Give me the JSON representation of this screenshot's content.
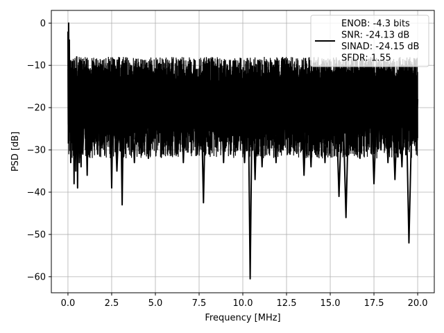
{
  "chart_data": {
    "type": "line",
    "title": "",
    "xlabel": "Frequency [MHz]",
    "ylabel": "PSD [dB]",
    "xlim": [
      -0.95,
      20.95
    ],
    "ylim": [
      -63.8,
      3.0
    ],
    "xticks": [
      0.0,
      2.5,
      5.0,
      7.5,
      10.0,
      12.5,
      15.0,
      17.5,
      20.0
    ],
    "xtick_labels": [
      "0.0",
      "2.5",
      "5.0",
      "7.5",
      "10.0",
      "12.5",
      "15.0",
      "17.5",
      "20.0"
    ],
    "yticks": [
      0,
      -10,
      -20,
      -30,
      -40,
      -50,
      -60
    ],
    "ytick_labels": [
      "0",
      "−10",
      "−20",
      "−30",
      "−40",
      "−50",
      "−60"
    ],
    "grid": true,
    "legend": {
      "placement": "top-right",
      "entries": [
        "ENOB: -4.3 bits",
        "SNR: -24.13 dB",
        "SINAD: -24.15 dB",
        "SFDR: 1.55"
      ]
    },
    "series": [
      {
        "color": "#000000",
        "x": [
          0.0,
          0.02,
          0.04,
          0.06,
          0.08,
          0.1,
          0.13,
          0.16,
          0.2,
          0.25,
          0.3,
          0.35,
          0.4,
          0.45,
          0.5,
          0.55,
          0.6,
          0.65,
          0.7,
          0.75,
          0.8,
          0.85,
          0.9,
          1.0,
          1.1,
          1.2,
          1.3,
          1.4,
          1.5,
          1.6,
          1.7,
          1.8,
          1.9,
          2.0,
          2.2,
          2.4,
          2.5,
          2.6,
          2.8,
          3.0,
          3.1,
          3.2,
          3.4,
          3.6,
          3.8,
          4.0,
          4.2,
          4.4,
          4.6,
          4.8,
          5.0,
          5.2,
          5.4,
          5.6,
          5.8,
          6.0,
          6.2,
          6.4,
          6.6,
          6.8,
          7.0,
          7.2,
          7.4,
          7.6,
          7.75,
          7.9,
          8.1,
          8.3,
          8.5,
          8.7,
          8.9,
          9.1,
          9.3,
          9.5,
          9.7,
          9.9,
          10.1,
          10.3,
          10.42,
          10.55,
          10.7,
          10.9,
          11.1,
          11.3,
          11.5,
          11.7,
          11.9,
          12.1,
          12.3,
          12.5,
          12.7,
          12.9,
          13.1,
          13.3,
          13.5,
          13.7,
          13.9,
          14.1,
          14.3,
          14.5,
          14.7,
          14.9,
          15.1,
          15.3,
          15.5,
          15.7,
          15.9,
          16.1,
          16.3,
          16.5,
          16.7,
          16.9,
          17.1,
          17.3,
          17.5,
          17.7,
          17.9,
          18.1,
          18.3,
          18.5,
          18.7,
          18.9,
          19.1,
          19.3,
          19.5,
          19.7,
          19.9,
          20.0
        ],
        "y": [
          -2,
          -24,
          0,
          -18,
          -4,
          -22,
          -9,
          -33,
          -12,
          -26,
          -9,
          -38,
          -14,
          -35,
          -8,
          -39,
          -11,
          -33,
          -16,
          -34,
          -9,
          -31,
          -25,
          -15,
          -36,
          -12,
          -30,
          -9,
          -29,
          -16,
          -31,
          -12,
          -27,
          -15,
          -25,
          -12,
          -39,
          -13,
          -35,
          -14,
          -43,
          -11,
          -28,
          -13,
          -33,
          -11,
          -26,
          -15,
          -32,
          -10,
          -27,
          -13,
          -30,
          -11,
          -29,
          -12,
          -31,
          -9,
          -33,
          -11,
          -28,
          -10,
          -31,
          -14,
          -42.5,
          -12,
          -31,
          -9,
          -29,
          -11,
          -33,
          -10,
          -31,
          -12,
          -30,
          -14,
          -33,
          -13,
          -60.5,
          -12,
          -37,
          -9,
          -34,
          -13,
          -29,
          -11,
          -33,
          -15,
          -30,
          -12,
          -31,
          -14,
          -29,
          -11,
          -36,
          -13,
          -34,
          -10,
          -30,
          -16,
          -33,
          -12,
          -27,
          -14,
          -41,
          -15,
          -46,
          -12,
          -30,
          -9,
          -32,
          -16,
          -29,
          -13,
          -38,
          -15,
          -30,
          -12,
          -33,
          -13,
          -37,
          -14,
          -34,
          -10,
          -52,
          -16,
          -28,
          -18
        ]
      }
    ]
  }
}
